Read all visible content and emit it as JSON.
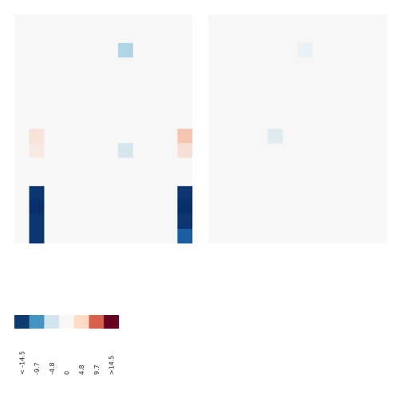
{
  "chart_data": [
    {
      "type": "heatmap",
      "panel": "left",
      "rows": 16,
      "cols": 12,
      "background_value": 0,
      "cells": [
        {
          "row": 2,
          "col": 7,
          "value": -3.4
        },
        {
          "row": 8,
          "col": 1,
          "value": 1.2
        },
        {
          "row": 8,
          "col": 11,
          "value": 2.9
        },
        {
          "row": 9,
          "col": 1,
          "value": 0.8
        },
        {
          "row": 9,
          "col": 7,
          "value": -1.6
        },
        {
          "row": 9,
          "col": 11,
          "value": 1.4
        },
        {
          "row": 12,
          "col": 1,
          "value": -14
        },
        {
          "row": 12,
          "col": 11,
          "value": -14
        },
        {
          "row": 13,
          "col": 1,
          "value": -14.5
        },
        {
          "row": 13,
          "col": 11,
          "value": -14.5
        },
        {
          "row": 14,
          "col": 1,
          "value": -14
        },
        {
          "row": 14,
          "col": 11,
          "value": -14
        },
        {
          "row": 15,
          "col": 1,
          "value": -14
        },
        {
          "row": 15,
          "col": 11,
          "value": -10.5
        }
      ]
    },
    {
      "type": "heatmap",
      "panel": "right",
      "rows": 16,
      "cols": 12,
      "background_value": 0,
      "cells": [
        {
          "row": 2,
          "col": 6,
          "value": -0.6
        },
        {
          "row": 8,
          "col": 4,
          "value": -1.2
        }
      ]
    }
  ],
  "legend": {
    "colors": [
      "#0d3b6e",
      "#4393c3",
      "#d1e5f0",
      "#f7f7f7",
      "#fddbc7",
      "#d6604d",
      "#67001f"
    ],
    "labels": [
      "< -14.5",
      "-9.7",
      "-4.8",
      "0",
      "4.8",
      "9.7",
      ">14.5"
    ],
    "breaks": [
      -14.5,
      -9.7,
      -4.8,
      0,
      4.8,
      9.7,
      14.5
    ]
  },
  "colors": {
    "neutral": "#f7f7f7",
    "blue_strong": "#08306b",
    "red_strong": "#67001f"
  }
}
